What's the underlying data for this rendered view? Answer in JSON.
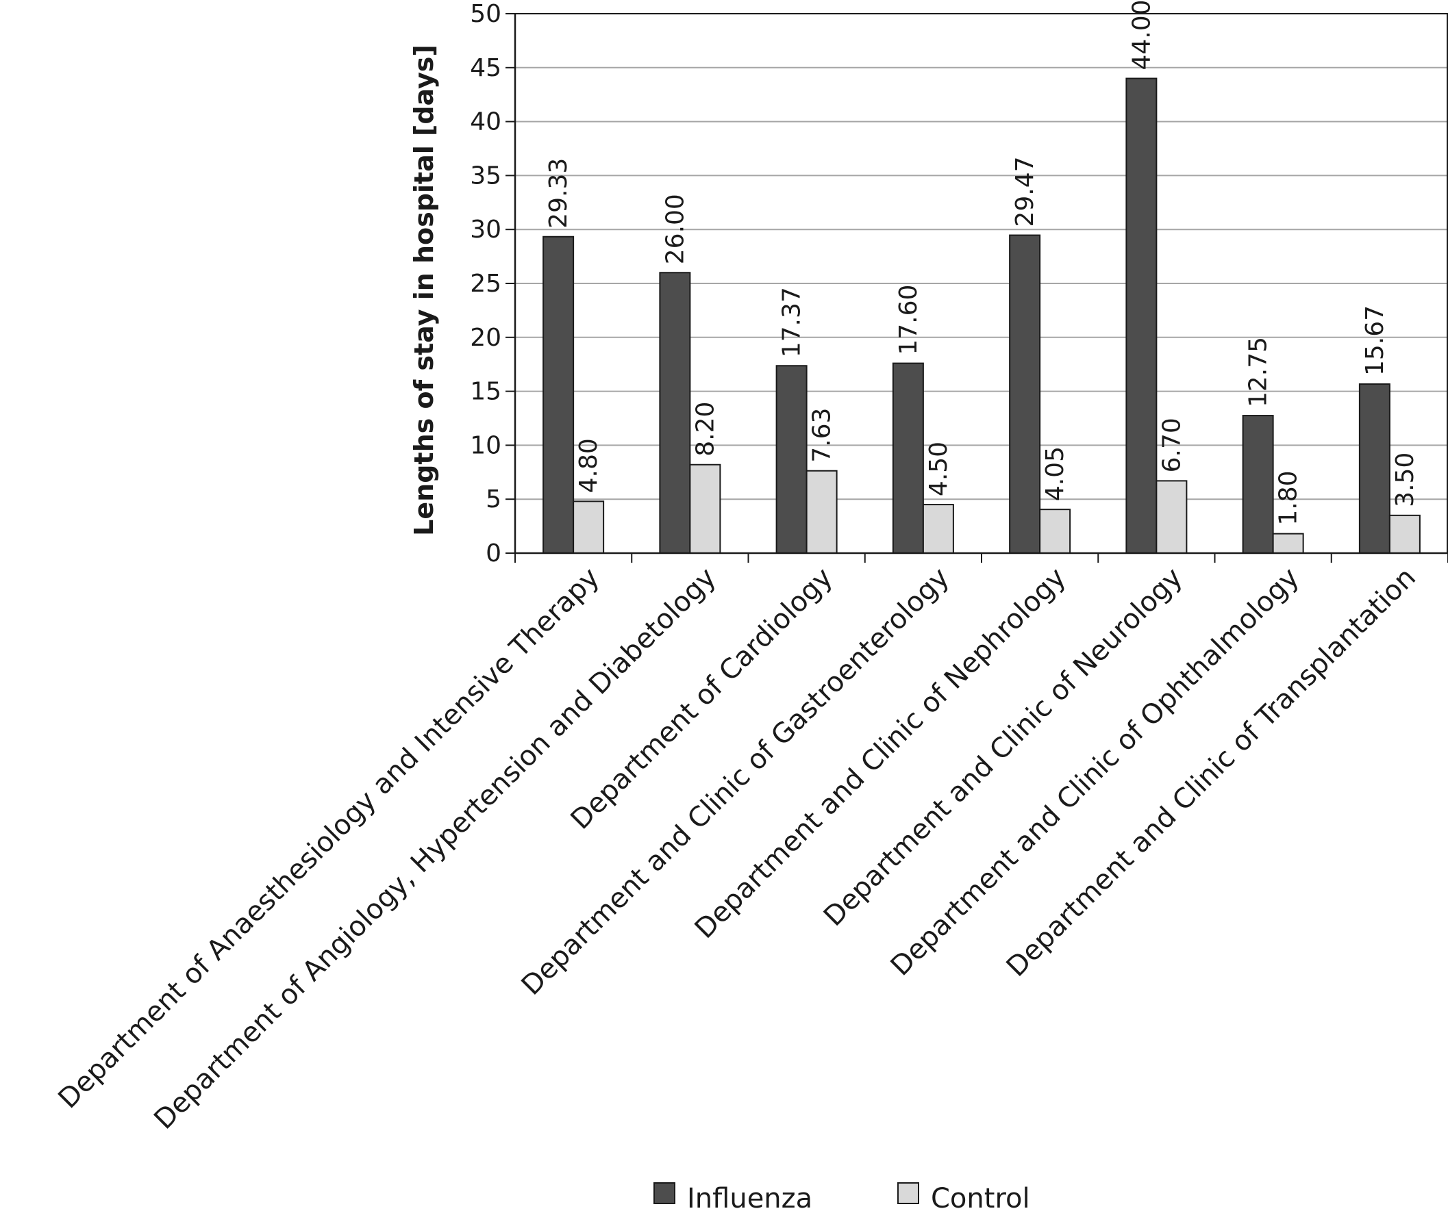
{
  "chart_data": {
    "type": "bar",
    "title": "",
    "xlabel": "",
    "ylabel": "Lengths of stay in hospital [days]",
    "ylim": [
      0,
      50
    ],
    "yticks": [
      0,
      5,
      10,
      15,
      20,
      25,
      30,
      35,
      40,
      45,
      50
    ],
    "grid": true,
    "legend_position": "bottom",
    "categories": [
      "Department of Anaesthesiology and Intensive Therapy",
      "Department of Angiology, Hypertension and Diabetology",
      "Department of Cardiology",
      "Department and Clinic of Gastroenterology",
      "Department and Clinic of Nephrology",
      "Department and Clinic of Neurology",
      "Department and Clinic of Ophthalmology",
      "Department and Clinic of Transplantation"
    ],
    "series": [
      {
        "name": "Influenza",
        "color": "#4d4d4d",
        "values": [
          29.33,
          26.0,
          17.37,
          17.6,
          29.47,
          44.0,
          12.75,
          15.67
        ],
        "labels": [
          "29.33",
          "26.00",
          "17.37",
          "17.60",
          "29.47",
          "44.00",
          "12.75",
          "15.67"
        ]
      },
      {
        "name": "Control",
        "color": "#d9d9d9",
        "values": [
          4.8,
          8.2,
          7.63,
          4.5,
          4.05,
          6.7,
          1.8,
          3.5
        ],
        "labels": [
          "4.80",
          "8.20",
          "7.63",
          "4.50",
          "4.05",
          "6.70",
          "1.80",
          "3.50"
        ]
      }
    ]
  }
}
